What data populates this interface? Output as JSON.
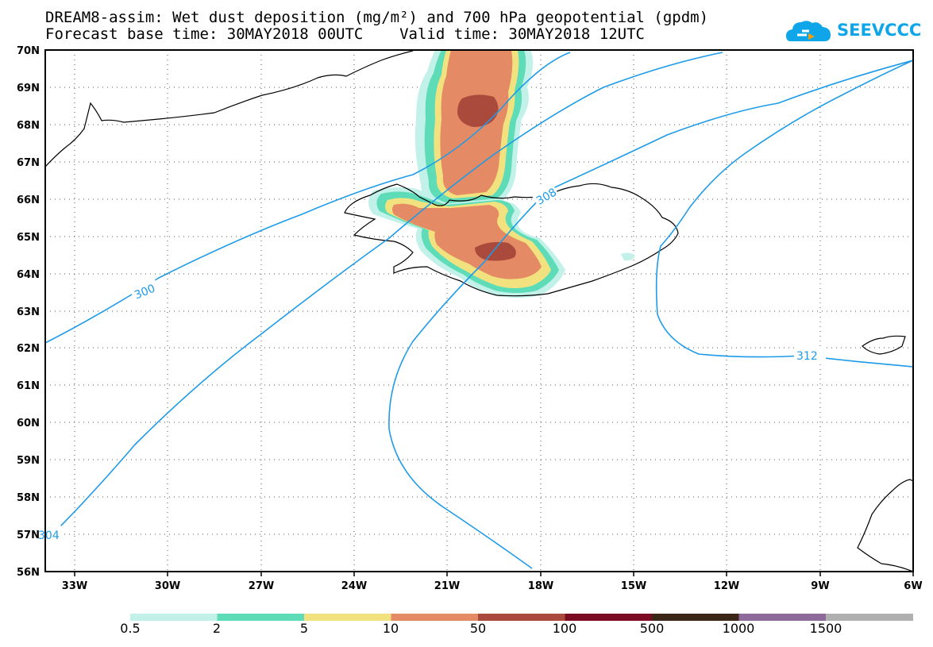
{
  "title": {
    "line1": "DREAM8-assim: Wet dust deposition (mg/m²) and 700 hPa geopotential (gpdm)",
    "line2": "Forecast base time: 30MAY2018 00UTC    Valid time: 30MAY2018 12UTC"
  },
  "logo": {
    "text": "SEEVCCC",
    "icon": "cloud-logo-icon",
    "color": "#0ea5e9"
  },
  "map": {
    "lat_labels": [
      "70N",
      "69N",
      "68N",
      "67N",
      "66N",
      "65N",
      "64N",
      "63N",
      "62N",
      "61N",
      "60N",
      "59N",
      "58N",
      "57N",
      "56N"
    ],
    "lon_labels": [
      "33W",
      "30W",
      "27W",
      "24W",
      "21W",
      "18W",
      "15W",
      "12W",
      "9W",
      "6W"
    ],
    "contour_labels": [
      "300",
      "304",
      "308",
      "312"
    ],
    "contour_color": "#1e9be8"
  },
  "colorbar": {
    "labels": [
      "0.5",
      "2",
      "5",
      "10",
      "50",
      "100",
      "500",
      "1000",
      "1500"
    ],
    "colors": [
      "#c2f1ea",
      "#5edcb7",
      "#f2e27f",
      "#e48a64",
      "#aa4a3c",
      "#7c0a22",
      "#3c2618",
      "#8e6a9a",
      "#b0b0b0"
    ]
  }
}
